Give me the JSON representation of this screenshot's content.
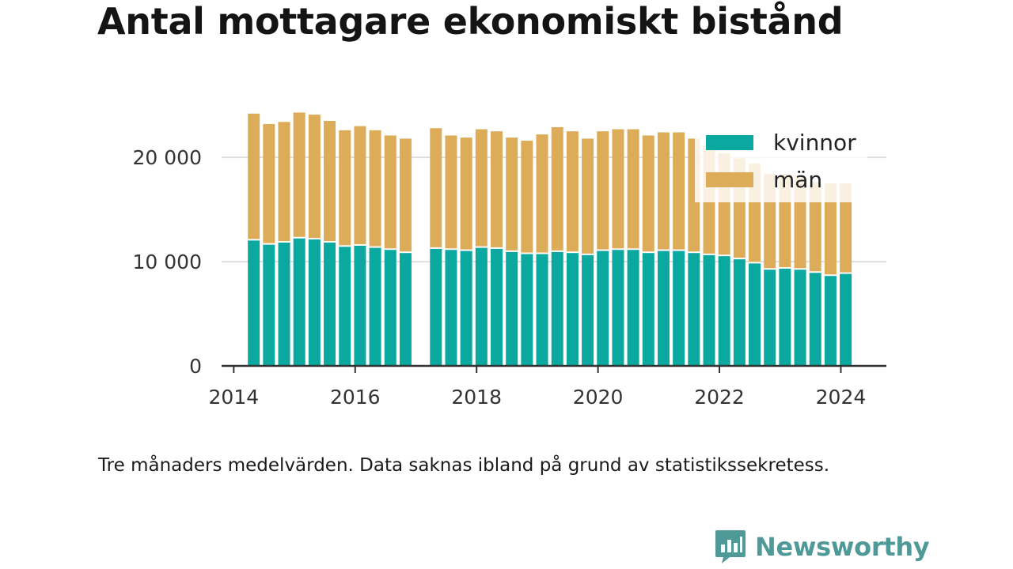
{
  "chart_data": {
    "type": "bar",
    "stacked": true,
    "title": "Antal mottagare ekonomiskt bistånd",
    "note": "Tre månaders medelvärden. Data saknas ibland på grund av statistikssekretess.",
    "x_tick_labels": [
      "2014",
      "2016",
      "2018",
      "2020",
      "2022",
      "2024"
    ],
    "y_tick_labels": [
      "0",
      "10 000",
      "20 000"
    ],
    "y_ticks": [
      0,
      10000,
      20000
    ],
    "ylim": [
      0,
      26000
    ],
    "xlim": [
      2013.8,
      2024.75
    ],
    "grid": true,
    "legend_position": "top-right",
    "x": [
      2014.33,
      2014.58,
      2014.83,
      2015.08,
      2015.33,
      2015.58,
      2015.83,
      2016.08,
      2016.33,
      2016.58,
      2016.83,
      2017.33,
      2017.58,
      2017.83,
      2018.08,
      2018.33,
      2018.58,
      2018.83,
      2019.08,
      2019.33,
      2019.58,
      2019.83,
      2020.08,
      2020.33,
      2020.58,
      2020.83,
      2021.08,
      2021.33,
      2021.58,
      2021.83,
      2022.08,
      2022.33,
      2022.58,
      2022.83,
      2023.08,
      2023.33,
      2023.58,
      2023.83,
      2024.08
    ],
    "series": [
      {
        "name": "kvinnor",
        "color": "#0aa89e",
        "values": [
          12100,
          11700,
          11900,
          12300,
          12200,
          11900,
          11500,
          11600,
          11400,
          11200,
          10900,
          11300,
          11200,
          11100,
          11400,
          11300,
          11000,
          10800,
          10800,
          11000,
          10900,
          10700,
          11100,
          11200,
          11200,
          10900,
          11100,
          11100,
          10900,
          10700,
          10600,
          10300,
          9900,
          9300,
          9400,
          9300,
          9000,
          8700,
          8900
        ]
      },
      {
        "name": "män",
        "color": "#dcac58",
        "values": [
          12100,
          11500,
          11500,
          12000,
          11900,
          11600,
          11100,
          11400,
          11200,
          10900,
          10900,
          11500,
          10900,
          10800,
          11300,
          11200,
          10900,
          10800,
          11400,
          11900,
          11600,
          11100,
          11400,
          11500,
          11500,
          11200,
          11300,
          11300,
          10900,
          10500,
          9800,
          9600,
          9500,
          9100,
          9000,
          9000,
          8600,
          8800,
          8600
        ]
      }
    ]
  },
  "brand": {
    "name": "Newsworthy",
    "logo_icon": "bar-chart-speech-bubble-icon",
    "color": "#4f9a98"
  }
}
